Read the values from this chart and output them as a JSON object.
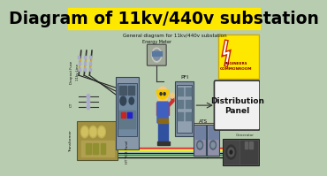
{
  "title": "Diagram of 11kv/440v substation",
  "title_bg": "#FFE800",
  "title_color": "#000000",
  "title_fontsize": 14,
  "subtitle": "General diagram for 11kv/440v substation",
  "bg_color": "#B8CCB0",
  "labels": {
    "dropout_fuse": "Dropout Fuse",
    "11kv_line": "11kv Line",
    "ct": "CT",
    "transformer": "Transformer",
    "energy_meter": "Energy Meter",
    "ht_vcb": "HT VCB Panel",
    "pfi": "PFI",
    "ats": "ATS",
    "distribution": "Distribution\nPanel",
    "generator": "Generator",
    "watermark_line1": "ENGINEERS",
    "watermark_line2": "COMMONROOM"
  },
  "logo_bg": "#FFE800",
  "wire_colors": [
    "#FF0000",
    "#FFFF00",
    "#0000CC",
    "#00AA00",
    "#000000"
  ],
  "dist_panel_bg": "#FFFFFF",
  "dist_panel_border": "#000000",
  "panel_gray": "#8898A8",
  "panel_dark": "#607080",
  "vcb_color": "#8898A8",
  "pfi_color": "#8090A0",
  "ats_color": "#9090A8"
}
